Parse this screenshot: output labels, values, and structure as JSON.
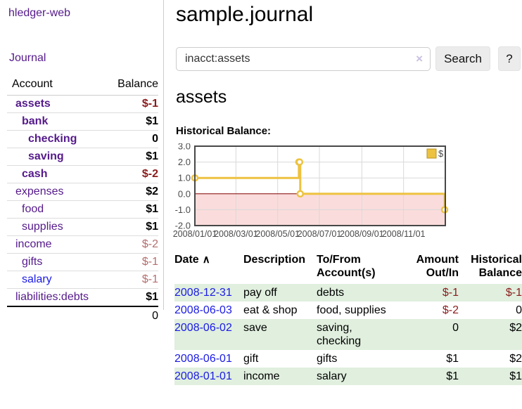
{
  "colors": {
    "link_purple": "#551a8b",
    "link_blue": "#1a1ae6",
    "negative": "#8b1c1c",
    "negative_dim": "#b46e6e",
    "row_green": "#e0efde",
    "chart_line": "#edc240",
    "chart_zero_line": "#800000",
    "chart_negative_fill": "#fbdcdc",
    "chart_grid": "#d9d9d9",
    "chart_border": "#474747",
    "chart_text": "#4a4a4a"
  },
  "sidebar": {
    "app_title": "hledger-web",
    "journal_label": "Journal",
    "accounts_header": {
      "account": "Account",
      "balance": "Balance"
    },
    "accounts": [
      {
        "name": "assets",
        "indent": 0,
        "balance": "$-1",
        "emphasized": true
      },
      {
        "name": "bank",
        "indent": 1,
        "balance": "$1",
        "emphasized": true
      },
      {
        "name": "checking",
        "indent": 2,
        "balance": "0",
        "emphasized": true
      },
      {
        "name": "saving",
        "indent": 2,
        "balance": "$1",
        "emphasized": true
      },
      {
        "name": "cash",
        "indent": 1,
        "balance": "$-2",
        "emphasized": true
      },
      {
        "name": "expenses",
        "indent": 0,
        "balance": "$2"
      },
      {
        "name": "food",
        "indent": 1,
        "balance": "$1"
      },
      {
        "name": "supplies",
        "indent": 1,
        "balance": "$1"
      },
      {
        "name": "income",
        "indent": 0,
        "balance": "$-2",
        "dim_negative": true
      },
      {
        "name": "gifts",
        "indent": 1,
        "balance": "$-1",
        "dim_negative": true
      },
      {
        "name": "salary",
        "indent": 1,
        "balance": "$-1",
        "dim_negative": true,
        "link_style": "blue"
      },
      {
        "name": "liabilities:debts",
        "indent": 0,
        "balance": "$1"
      }
    ],
    "total": "0"
  },
  "main": {
    "title": "sample.journal",
    "search": {
      "value": "inacct:assets",
      "clear_icon": "×",
      "button_label": "Search",
      "help_label": "?"
    },
    "account_heading": "assets",
    "chart_title": "Historical Balance:"
  },
  "chart_data": {
    "type": "line",
    "step": true,
    "title": "Historical Balance:",
    "legend": [
      {
        "name": "$",
        "color": "#edc240"
      }
    ],
    "legend_position": "top-right",
    "grid": true,
    "xlim": [
      "2008-01-01",
      "2008-12-31"
    ],
    "ylim": [
      -2,
      3
    ],
    "x_ticks": [
      "2008/01/01",
      "2008/03/01",
      "2008/05/01",
      "2008/07/01",
      "2008/09/01",
      "2008/11/01"
    ],
    "y_ticks": [
      "3.0",
      "2.0",
      "1.0",
      "0.0",
      "-1.0",
      "-2.0"
    ],
    "series": [
      {
        "name": "$",
        "points": [
          [
            "2008-01-01",
            1
          ],
          [
            "2008-06-01",
            2
          ],
          [
            "2008-06-02",
            2
          ],
          [
            "2008-06-03",
            0
          ],
          [
            "2008-12-31",
            -1
          ]
        ]
      }
    ],
    "negative_region_shaded": true
  },
  "register": {
    "headers": [
      "Date",
      "Description",
      "To/From Account(s)",
      "Amount Out/In",
      "Historical Balance"
    ],
    "sort_icon": "∧",
    "rows": [
      {
        "date": "2008-12-31",
        "description": "pay off",
        "accounts": "debts",
        "amount": "$-1",
        "balance": "$-1"
      },
      {
        "date": "2008-06-03",
        "description": "eat & shop",
        "accounts": "food, supplies",
        "amount": "$-2",
        "balance": "0"
      },
      {
        "date": "2008-06-02",
        "description": "save",
        "accounts": "saving, checking",
        "amount": "0",
        "balance": "$2"
      },
      {
        "date": "2008-06-01",
        "description": "gift",
        "accounts": "gifts",
        "amount": "$1",
        "balance": "$2"
      },
      {
        "date": "2008-01-01",
        "description": "income",
        "accounts": "salary",
        "amount": "$1",
        "balance": "$1"
      }
    ]
  }
}
